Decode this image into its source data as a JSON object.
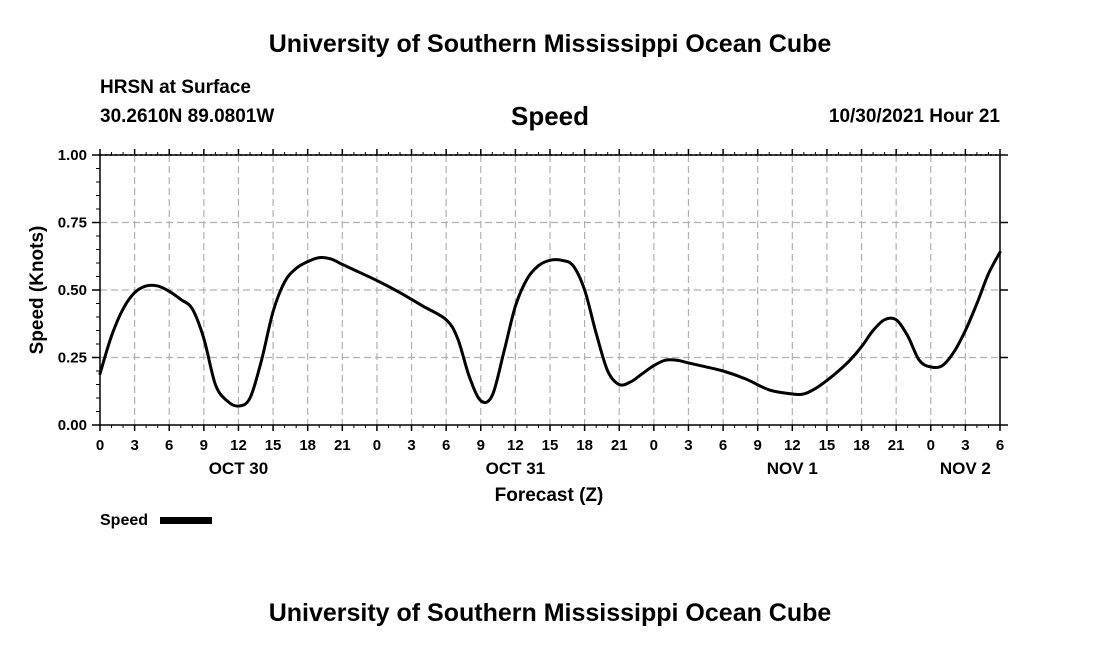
{
  "header": {
    "title": "University of Southern Mississippi Ocean Cube",
    "station": "HRSN at Surface",
    "coordinates": "30.2610N  89.0801W",
    "variable": "Speed",
    "timestamp": "10/30/2021 Hour 21"
  },
  "footer": {
    "title": "University of Southern Mississippi Ocean Cube"
  },
  "chart_data": {
    "type": "line",
    "title": "Speed",
    "xlabel": "Forecast (Z)",
    "ylabel": "Speed (Knots)",
    "ylim": [
      0,
      1
    ],
    "y_ticks": [
      "0.00",
      "0.25",
      "0.50",
      "0.75",
      "1.00"
    ],
    "x_range_hours": [
      0,
      78
    ],
    "x_tick_labels": [
      "0",
      "3",
      "6",
      "9",
      "12",
      "15",
      "18",
      "21",
      "0",
      "3",
      "6",
      "9",
      "12",
      "15",
      "18",
      "21",
      "0",
      "3",
      "6",
      "9",
      "12",
      "15",
      "18",
      "21",
      "0",
      "3",
      "6"
    ],
    "day_labels": [
      {
        "label": "OCT 30",
        "hour": 12
      },
      {
        "label": "OCT 31",
        "hour": 36
      },
      {
        "label": "NOV 1",
        "hour": 60
      },
      {
        "label": "NOV 2",
        "hour": 75
      }
    ],
    "grid": true,
    "legend": {
      "position": "bottom-left",
      "entries": [
        "Speed"
      ]
    },
    "series": [
      {
        "name": "Speed",
        "color": "#000000",
        "x": [
          0,
          1,
          2,
          3,
          4,
          5,
          6,
          7,
          8,
          9,
          10,
          11,
          12,
          13,
          14,
          15,
          16,
          17,
          18,
          19,
          20,
          21,
          22,
          24,
          26,
          28,
          30,
          31,
          32,
          33,
          34,
          35,
          36,
          37,
          38,
          39,
          40,
          41,
          42,
          43,
          44,
          45,
          46,
          47,
          48,
          49,
          50,
          51,
          52,
          54,
          56,
          58,
          60,
          61,
          62,
          63,
          64,
          65,
          66,
          67,
          68,
          69,
          70,
          71,
          72,
          73,
          74,
          75,
          76,
          77,
          78
        ],
        "values": [
          0.19,
          0.33,
          0.43,
          0.49,
          0.515,
          0.515,
          0.495,
          0.465,
          0.43,
          0.32,
          0.15,
          0.09,
          0.07,
          0.1,
          0.24,
          0.42,
          0.53,
          0.58,
          0.605,
          0.62,
          0.615,
          0.595,
          0.575,
          0.535,
          0.49,
          0.44,
          0.39,
          0.32,
          0.18,
          0.09,
          0.11,
          0.27,
          0.44,
          0.54,
          0.59,
          0.61,
          0.61,
          0.59,
          0.5,
          0.34,
          0.2,
          0.15,
          0.16,
          0.19,
          0.22,
          0.24,
          0.24,
          0.23,
          0.22,
          0.2,
          0.17,
          0.13,
          0.115,
          0.115,
          0.135,
          0.165,
          0.2,
          0.24,
          0.29,
          0.35,
          0.39,
          0.39,
          0.33,
          0.24,
          0.215,
          0.22,
          0.27,
          0.35,
          0.45,
          0.56,
          0.64
        ]
      }
    ]
  }
}
